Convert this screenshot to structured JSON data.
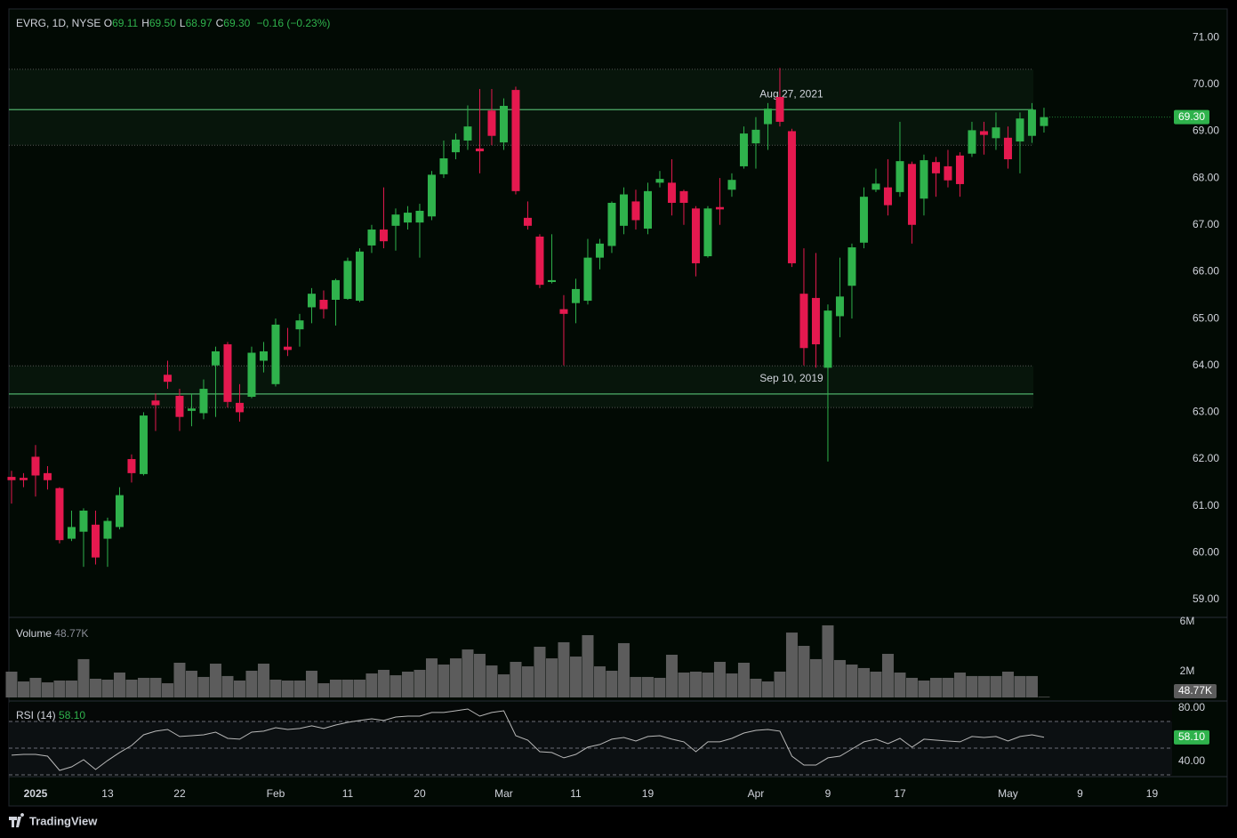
{
  "chart_data": {
    "type": "candlestick",
    "header": {
      "symbol": "EVRG, 1D, NYSE",
      "fields": [
        {
          "key": "O",
          "value": "69.11"
        },
        {
          "key": "H",
          "value": "69.50"
        },
        {
          "key": "L",
          "value": "68.97"
        },
        {
          "key": "C",
          "value": "69.30"
        }
      ],
      "change": "−0.16 (−0.23%)"
    },
    "xlim": [
      -0.22,
      96.67
    ],
    "xticks": [
      {
        "value": 2,
        "label": "2025"
      },
      {
        "value": 8,
        "label": "13"
      },
      {
        "value": 14,
        "label": "22"
      },
      {
        "value": 22,
        "label": "Feb"
      },
      {
        "value": 28,
        "label": "11"
      },
      {
        "value": 34,
        "label": "20"
      },
      {
        "value": 41,
        "label": "Mar"
      },
      {
        "value": 47,
        "label": "11"
      },
      {
        "value": 53,
        "label": "19"
      },
      {
        "value": 62,
        "label": "Apr"
      },
      {
        "value": 68,
        "label": "9"
      },
      {
        "value": 74,
        "label": "17"
      },
      {
        "value": 83,
        "label": "May"
      },
      {
        "value": 89,
        "label": "9"
      },
      {
        "value": 95,
        "label": "19"
      }
    ],
    "ylim": [
      58.64,
      71.61
    ],
    "yticks": [
      {
        "value": 71,
        "label": "71.00"
      },
      {
        "value": 70,
        "label": "70.00"
      },
      {
        "value": 69,
        "label": "69.00"
      },
      {
        "value": 68,
        "label": "68.00"
      },
      {
        "value": 67,
        "label": "67.00"
      },
      {
        "value": 66,
        "label": "66.00"
      },
      {
        "value": 65,
        "label": "65.00"
      },
      {
        "value": 64,
        "label": "64.00"
      },
      {
        "value": 63,
        "label": "63.00"
      },
      {
        "value": 62,
        "label": "62.00"
      },
      {
        "value": 61,
        "label": "61.00"
      },
      {
        "value": 60,
        "label": "60.00"
      },
      {
        "value": 59,
        "label": "59.00"
      }
    ],
    "up_color": "#2fb24c",
    "down_color": "#e5194f",
    "open": [
      61.62,
      61.6,
      62.05,
      61.7,
      61.38,
      60.3,
      60.45,
      60.6,
      60.3,
      60.55,
      62.0,
      61.68,
      63.25,
      63.8,
      63.35,
      63.03,
      62.98,
      64.0,
      64.45,
      63.2,
      63.33,
      64.1,
      63.6,
      64.4,
      64.77,
      65.24,
      65.4,
      65.4,
      65.42,
      65.38,
      66.56,
      66.9,
      66.98,
      67.05,
      67.05,
      67.18,
      68.08,
      68.55,
      68.8,
      68.63,
      69.44,
      68.76,
      69.88,
      67.15,
      66.75,
      65.78,
      65.2,
      65.33,
      65.38,
      66.3,
      66.55,
      66.98,
      67.5,
      66.92,
      67.9,
      67.9,
      67.72,
      67.35,
      66.33,
      67.38,
      67.75,
      68.25,
      68.74,
      69.15,
      69.73,
      69.0,
      65.53,
      65.44,
      63.95,
      65.05,
      65.7,
      66.62,
      67.75,
      67.8,
      67.7,
      68.3,
      67.56,
      68.34,
      68.25,
      68.48,
      68.52,
      69.0,
      68.85,
      68.86,
      68.78,
      68.9,
      69.11
    ],
    "high": [
      61.75,
      61.7,
      62.3,
      61.85,
      61.4,
      60.9,
      60.95,
      60.9,
      60.75,
      61.4,
      62.1,
      63.0,
      63.4,
      64.1,
      63.5,
      63.4,
      63.7,
      64.4,
      64.5,
      63.6,
      64.4,
      64.5,
      65.0,
      64.8,
      65.1,
      65.65,
      65.6,
      65.85,
      66.3,
      66.5,
      67.0,
      67.8,
      67.35,
      67.4,
      67.45,
      68.15,
      68.8,
      68.95,
      69.55,
      69.9,
      69.9,
      69.7,
      69.95,
      67.5,
      66.8,
      66.8,
      65.5,
      65.85,
      66.7,
      66.7,
      67.5,
      67.8,
      67.75,
      67.9,
      68.15,
      68.4,
      67.75,
      67.4,
      67.4,
      68.0,
      68.1,
      69.1,
      69.3,
      69.6,
      70.35,
      69.05,
      66.5,
      66.4,
      65.3,
      66.3,
      66.6,
      67.8,
      68.2,
      68.4,
      69.2,
      68.35,
      68.5,
      68.45,
      68.6,
      68.55,
      69.2,
      69.2,
      69.4,
      69.1,
      69.4,
      69.6,
      69.5
    ],
    "low": [
      61.05,
      61.4,
      61.2,
      61.35,
      60.2,
      60.25,
      59.7,
      59.75,
      59.7,
      60.5,
      61.5,
      61.65,
      62.6,
      63.5,
      62.6,
      62.7,
      62.85,
      62.9,
      63.1,
      62.8,
      63.3,
      63.85,
      63.55,
      64.2,
      64.4,
      64.9,
      65.0,
      64.85,
      65.4,
      65.35,
      66.4,
      66.5,
      66.45,
      66.9,
      66.3,
      67.1,
      68.0,
      68.4,
      68.6,
      68.1,
      68.7,
      68.6,
      67.65,
      66.9,
      65.65,
      65.75,
      64.0,
      64.9,
      65.3,
      66.05,
      66.4,
      66.8,
      66.9,
      66.8,
      67.8,
      67.2,
      67.0,
      65.9,
      66.3,
      67.0,
      67.6,
      68.2,
      68.2,
      68.6,
      69.1,
      66.1,
      64.0,
      63.95,
      61.95,
      64.6,
      65.0,
      66.5,
      67.7,
      67.2,
      67.6,
      66.6,
      67.2,
      67.6,
      67.8,
      67.6,
      68.45,
      68.5,
      68.6,
      68.2,
      68.1,
      68.75,
      68.97
    ],
    "close": [
      61.55,
      61.55,
      61.65,
      61.55,
      60.27,
      60.55,
      60.9,
      59.9,
      60.68,
      61.23,
      61.7,
      62.93,
      63.15,
      63.65,
      62.9,
      63.08,
      63.5,
      64.3,
      63.22,
      63.0,
      64.27,
      64.3,
      64.87,
      64.33,
      64.96,
      65.53,
      65.2,
      65.82,
      66.23,
      66.43,
      66.9,
      66.65,
      67.22,
      67.26,
      67.3,
      68.07,
      68.42,
      68.82,
      69.1,
      68.57,
      68.9,
      69.54,
      67.72,
      66.98,
      65.72,
      65.82,
      65.1,
      65.63,
      66.3,
      66.6,
      67.47,
      67.65,
      67.1,
      67.72,
      67.98,
      67.47,
      67.47,
      66.18,
      67.35,
      67.33,
      67.96,
      68.95,
      69.03,
      69.48,
      69.2,
      66.18,
      64.37,
      64.45,
      65.17,
      65.47,
      66.52,
      67.6,
      67.88,
      67.42,
      68.36,
      67.0,
      68.38,
      68.1,
      67.95,
      67.87,
      69.02,
      68.92,
      69.08,
      68.4,
      69.27,
      69.46,
      69.3
    ],
    "price_tag": "69.30",
    "levels": [
      {
        "label": "Aug 27, 2021",
        "value": 69.46,
        "zone": [
          70.32,
          68.7
        ]
      },
      {
        "label": "Sep 10, 2019",
        "value": 63.39,
        "zone": [
          63.99,
          63.1
        ]
      }
    ],
    "volume": {
      "title": "Volume",
      "value_label": "48.77K",
      "color": "#5c5c5c",
      "ylim": [
        -138000,
        6138000
      ],
      "yticks": [
        {
          "value": 6000000,
          "label": "6M"
        },
        {
          "value": 2000000,
          "label": "2M"
        }
      ],
      "values": [
        2000000,
        1240000,
        1520000,
        1170000,
        1310000,
        1310000,
        2970000,
        1450000,
        1380000,
        1930000,
        1380000,
        1520000,
        1520000,
        1100000,
        2690000,
        2070000,
        1590000,
        2620000,
        1660000,
        1310000,
        2070000,
        2620000,
        1380000,
        1310000,
        1310000,
        2070000,
        1100000,
        1380000,
        1380000,
        1380000,
        1860000,
        2140000,
        1720000,
        2000000,
        2140000,
        3030000,
        2550000,
        3030000,
        3720000,
        3380000,
        2480000,
        1790000,
        2760000,
        2410000,
        3930000,
        3030000,
        4280000,
        3170000,
        4830000,
        2410000,
        2070000,
        4210000,
        1590000,
        1590000,
        1520000,
        3310000,
        1930000,
        2000000,
        1930000,
        2760000,
        1860000,
        2690000,
        1450000,
        1240000,
        2000000,
        5030000,
        4000000,
        2970000,
        5590000,
        2900000,
        2550000,
        2280000,
        2000000,
        3380000,
        1930000,
        1520000,
        1310000,
        1520000,
        1520000,
        1930000,
        1660000,
        1660000,
        1660000,
        2000000,
        1660000,
        1660000,
        48770
      ]
    },
    "rsi": {
      "title": "RSI (14)",
      "value_label": "58.10",
      "color": "#b8b8b8",
      "ylim": [
        29.33,
        84
      ],
      "yticks": [
        {
          "value": 80,
          "label": "80.00"
        },
        {
          "value": 40,
          "label": "40.00"
        }
      ],
      "bands": [
        70,
        50,
        30
      ],
      "values": [
        44.7,
        45.3,
        45.3,
        44.0,
        33.3,
        36.0,
        41.3,
        34.0,
        40.7,
        46.7,
        52.0,
        60.0,
        62.7,
        64.0,
        58.7,
        59.3,
        60.0,
        62.0,
        57.3,
        56.7,
        62.0,
        62.7,
        65.3,
        64.0,
        64.7,
        66.7,
        64.7,
        67.3,
        69.3,
        70.7,
        72.0,
        70.7,
        73.3,
        74.0,
        74.0,
        76.7,
        76.7,
        78.0,
        79.3,
        74.0,
        76.7,
        78.0,
        59.3,
        56.0,
        47.3,
        46.7,
        42.7,
        45.3,
        50.7,
        52.7,
        56.7,
        58.0,
        55.3,
        58.7,
        59.3,
        56.7,
        54.7,
        47.3,
        54.7,
        54.7,
        57.3,
        61.3,
        63.3,
        64.0,
        62.7,
        44.0,
        37.3,
        37.3,
        42.7,
        44.0,
        49.3,
        54.7,
        56.7,
        53.3,
        57.3,
        50.7,
        56.7,
        56.0,
        55.3,
        54.7,
        58.7,
        58.0,
        58.7,
        55.3,
        58.7,
        60.0,
        58.1
      ]
    },
    "brand": "TradingView"
  }
}
